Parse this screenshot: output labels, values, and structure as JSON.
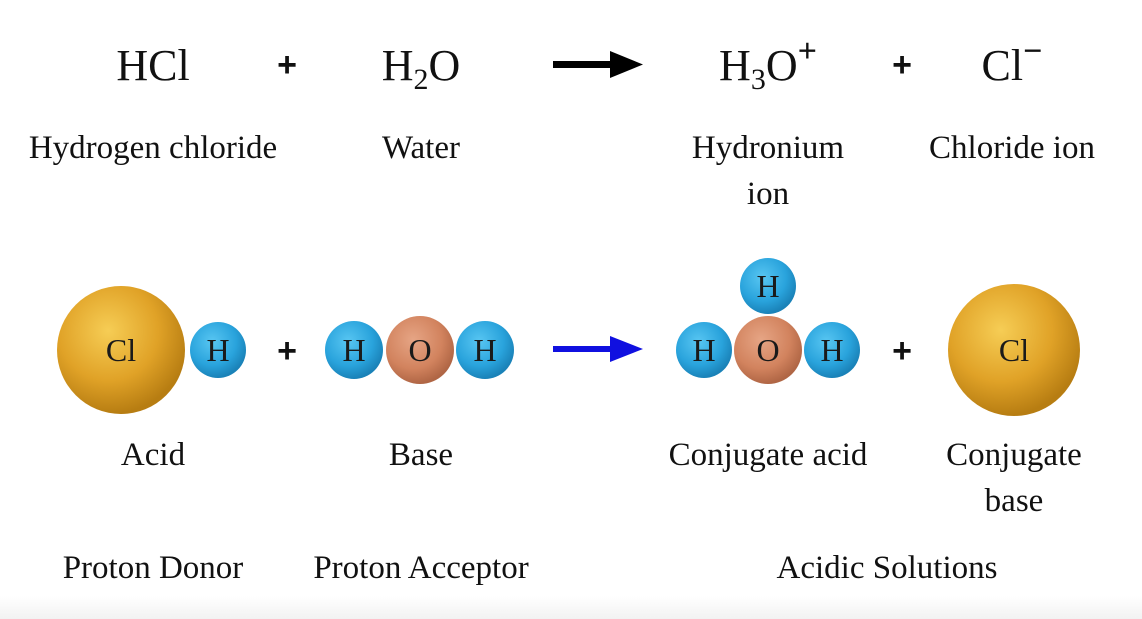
{
  "equation": {
    "reactant1": {
      "base": "HCl",
      "sub": "",
      "rest": "",
      "sup": ""
    },
    "plus1": "+",
    "reactant2": {
      "base": "H",
      "sub": "2",
      "rest": "O",
      "sup": ""
    },
    "product1": {
      "base": "H",
      "sub": "3",
      "rest": "O",
      "sup": "+"
    },
    "plus2": "+",
    "product2": {
      "base": "Cl",
      "sub": "",
      "rest": "",
      "sup": "−"
    }
  },
  "names": {
    "reactant1": "Hydrogen chloride",
    "reactant2": "Water",
    "product1": "Hydronium ion",
    "product2": "Chloride ion"
  },
  "molecules": {
    "plus1": "+",
    "plus2": "+",
    "acid_atoms": [
      "Cl",
      "H"
    ],
    "base_atoms": [
      "H",
      "O",
      "H"
    ],
    "conj_acid_atoms": [
      "H",
      "H",
      "O",
      "H"
    ],
    "conj_base_atoms": [
      "Cl"
    ]
  },
  "labels": {
    "acid": "Acid",
    "base": "Base",
    "conjugate_acid": "Conjugate acid",
    "conjugate_base": "Conjugate base"
  },
  "roles": {
    "donor": "Proton Donor",
    "acceptor": "Proton Acceptor",
    "solution": "Acidic Solutions"
  },
  "colors": {
    "chlorine": "#e0a227",
    "hydrogen": "#29a3dc",
    "oxygen": "#d2835e",
    "arrow_top": "#000000",
    "arrow_bottom": "#1010e0"
  }
}
